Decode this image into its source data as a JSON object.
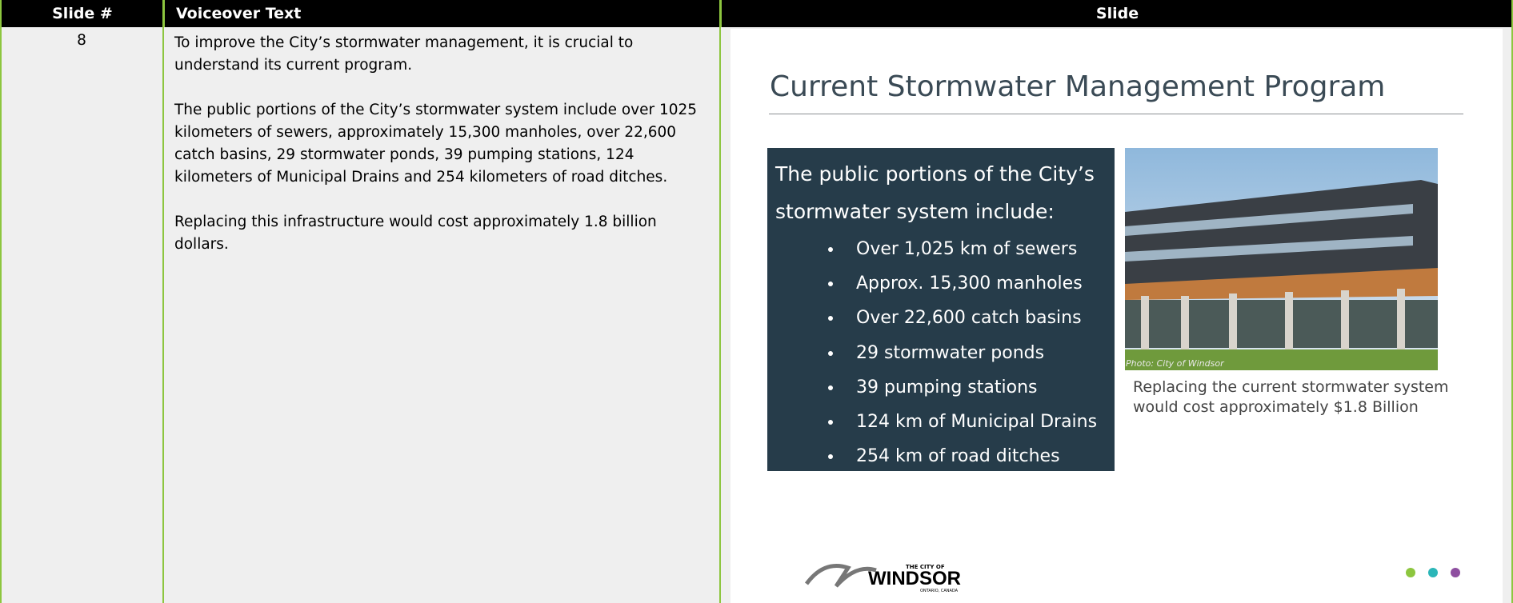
{
  "header": {
    "slide_number": "Slide #",
    "voiceover": "Voiceover Text",
    "slide": "Slide"
  },
  "row": {
    "slide_number": "8",
    "voiceover": [
      "To improve the City’s stormwater management, it is crucial to understand its current program.",
      "The public portions of the City’s stormwater system include over 1025 kilometers of sewers, approximately 15,300 manholes, over 22,600 catch basins, 29 stormwater ponds, 39 pumping stations, 124 kilometers of Municipal Drains and 254 kilometers of road ditches.",
      "Replacing this infrastructure would cost approximately 1.8 billion dollars."
    ]
  },
  "slide": {
    "title": "Current Stormwater Management Program",
    "box_intro": [
      "The public portions of the City’s",
      "stormwater system include:"
    ],
    "bullets": [
      "Over 1,025 km of sewers",
      "Approx. 15,300 manholes",
      "Over 22,600 catch basins",
      "29 stormwater ponds",
      "39 pumping stations",
      "124 km of Municipal Drains",
      "254 km of road ditches"
    ],
    "photo_credit": "Photo: City of Windsor",
    "caption": [
      "Replacing the current stormwater system",
      "would cost approximately $1.8 Billion"
    ],
    "logo": {
      "top": "THE CITY OF",
      "name": "WINDSOR",
      "bottom": "ONTARIO, CANADA"
    }
  }
}
